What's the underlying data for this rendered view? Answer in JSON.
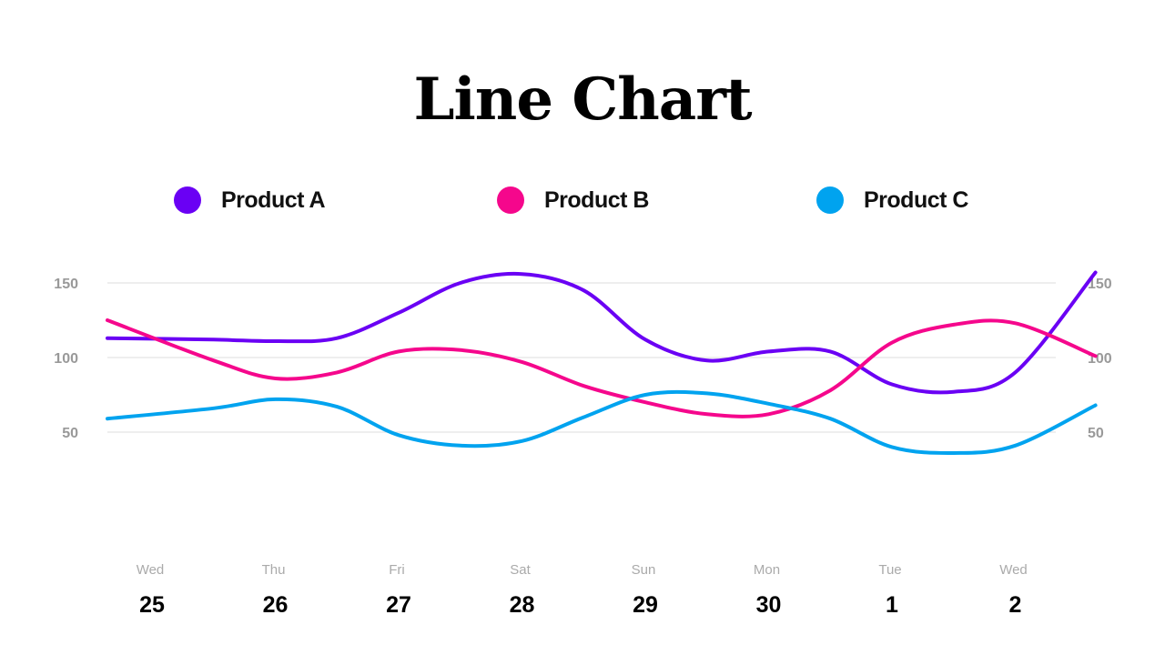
{
  "chart_data": {
    "type": "line",
    "title": "Line Chart",
    "x_days": [
      "Wed",
      "Thu",
      "Fri",
      "Sat",
      "Sun",
      "Mon",
      "Tue",
      "Wed"
    ],
    "x_dates": [
      "25",
      "26",
      "27",
      "28",
      "29",
      "30",
      "1",
      "2"
    ],
    "y_ticks": [
      50,
      100,
      150
    ],
    "ylim": [
      0,
      180
    ],
    "grid": true,
    "legend_position": "top",
    "series": [
      {
        "name": "Product A",
        "color": "#6a00f4",
        "x": [
          0,
          0.5,
          1,
          1.5,
          2,
          2.5,
          3,
          3.5,
          4,
          4.5,
          5,
          5.5,
          6,
          6.5,
          7,
          7.65
        ],
        "values": [
          113,
          112,
          111,
          113,
          130,
          150,
          156,
          145,
          112,
          98,
          104,
          104,
          82,
          77,
          90,
          157
        ]
      },
      {
        "name": "Product B",
        "color": "#f5078c",
        "x": [
          0,
          0.5,
          1,
          1.5,
          2,
          2.5,
          3,
          3.5,
          4,
          4.5,
          5,
          5.5,
          6,
          6.5,
          7,
          7.65
        ],
        "values": [
          125,
          98,
          86,
          90,
          104,
          105,
          97,
          81,
          70,
          62,
          62,
          78,
          110,
          122,
          123,
          101
        ]
      },
      {
        "name": "Product C",
        "color": "#00a3ef",
        "x": [
          0,
          0.5,
          1,
          1.5,
          2,
          2.5,
          3,
          3.5,
          4,
          4.5,
          5,
          5.5,
          6,
          6.5,
          7,
          7.65
        ],
        "values": [
          59,
          66,
          72,
          67,
          48,
          41,
          44,
          60,
          75,
          76,
          69,
          59,
          40,
          36,
          41,
          68
        ]
      }
    ]
  }
}
